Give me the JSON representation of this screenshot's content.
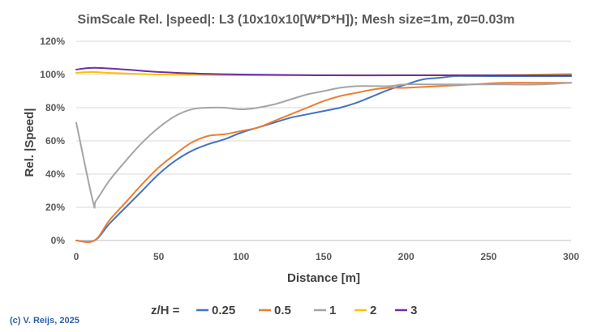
{
  "chart_data": {
    "type": "line",
    "title": "SimScale Rel. |speed|: L3 (10x10x10[W*D*H]); Mesh size=1m, z0=0.03m",
    "xlabel": "Distance [m]",
    "ylabel": "Rel. |Speed|",
    "xlim": [
      0,
      300
    ],
    "ylim": [
      0,
      120
    ],
    "x_ticks": [
      "0",
      "50",
      "100",
      "150",
      "200",
      "250",
      "300"
    ],
    "y_ticks": [
      "0%",
      "20%",
      "40%",
      "60%",
      "80%",
      "100%",
      "120%"
    ],
    "grid": "horizontal",
    "legend_title": "z/H =",
    "legend_position": "bottom",
    "credit": "(c) V. Reijs, 2025",
    "series": [
      {
        "name": "0.25",
        "color": "#4472C4",
        "points": [
          [
            0,
            0
          ],
          [
            11,
            0
          ],
          [
            20,
            10
          ],
          [
            30,
            20
          ],
          [
            40,
            30
          ],
          [
            50,
            40
          ],
          [
            60,
            48
          ],
          [
            70,
            54
          ],
          [
            80,
            58
          ],
          [
            90,
            61
          ],
          [
            100,
            65
          ],
          [
            110,
            68
          ],
          [
            120,
            71
          ],
          [
            130,
            74
          ],
          [
            140,
            76
          ],
          [
            150,
            78
          ],
          [
            160,
            80
          ],
          [
            170,
            83
          ],
          [
            180,
            87
          ],
          [
            190,
            91
          ],
          [
            200,
            94
          ],
          [
            210,
            97
          ],
          [
            220,
            98
          ],
          [
            230,
            99
          ],
          [
            240,
            99
          ],
          [
            250,
            99
          ],
          [
            260,
            99
          ],
          [
            270,
            99
          ],
          [
            280,
            99
          ],
          [
            290,
            99
          ],
          [
            300,
            99
          ]
        ]
      },
      {
        "name": "0.5",
        "color": "#ED7D31",
        "points": [
          [
            0,
            0
          ],
          [
            11,
            0
          ],
          [
            20,
            12
          ],
          [
            30,
            23
          ],
          [
            40,
            34
          ],
          [
            50,
            44
          ],
          [
            60,
            52
          ],
          [
            70,
            59
          ],
          [
            80,
            63
          ],
          [
            90,
            64
          ],
          [
            100,
            66
          ],
          [
            110,
            68
          ],
          [
            120,
            72
          ],
          [
            130,
            76
          ],
          [
            140,
            80
          ],
          [
            150,
            84
          ],
          [
            160,
            87
          ],
          [
            170,
            89
          ],
          [
            180,
            91
          ],
          [
            190,
            92
          ],
          [
            200,
            92
          ],
          [
            220,
            93
          ],
          [
            240,
            94
          ],
          [
            260,
            95
          ],
          [
            280,
            95
          ],
          [
            300,
            95
          ]
        ]
      },
      {
        "name": "1",
        "color": "#A5A5A5",
        "points": [
          [
            0,
            71
          ],
          [
            10,
            24
          ],
          [
            12,
            24
          ],
          [
            20,
            36
          ],
          [
            30,
            48
          ],
          [
            40,
            59
          ],
          [
            50,
            68
          ],
          [
            60,
            75
          ],
          [
            70,
            79
          ],
          [
            80,
            80
          ],
          [
            90,
            80
          ],
          [
            100,
            79
          ],
          [
            110,
            80
          ],
          [
            120,
            82
          ],
          [
            130,
            85
          ],
          [
            140,
            88
          ],
          [
            150,
            90
          ],
          [
            160,
            92
          ],
          [
            170,
            93
          ],
          [
            180,
            93
          ],
          [
            190,
            93
          ],
          [
            200,
            94
          ],
          [
            220,
            94
          ],
          [
            240,
            94
          ],
          [
            260,
            94
          ],
          [
            280,
            94
          ],
          [
            300,
            95
          ]
        ]
      },
      {
        "name": "2",
        "color": "#FFC000",
        "points": [
          [
            0,
            101
          ],
          [
            10,
            101.5
          ],
          [
            20,
            101
          ],
          [
            50,
            100
          ],
          [
            100,
            99.5
          ],
          [
            150,
            99.5
          ],
          [
            200,
            99.5
          ],
          [
            250,
            99.5
          ],
          [
            300,
            100.5
          ]
        ]
      },
      {
        "name": "3",
        "color": "#7030A0",
        "points": [
          [
            0,
            103
          ],
          [
            11,
            104
          ],
          [
            30,
            103
          ],
          [
            50,
            101.5
          ],
          [
            75,
            100.5
          ],
          [
            100,
            100
          ],
          [
            150,
            99.5
          ],
          [
            200,
            99.5
          ],
          [
            250,
            99.5
          ],
          [
            300,
            99.5
          ]
        ]
      }
    ]
  }
}
